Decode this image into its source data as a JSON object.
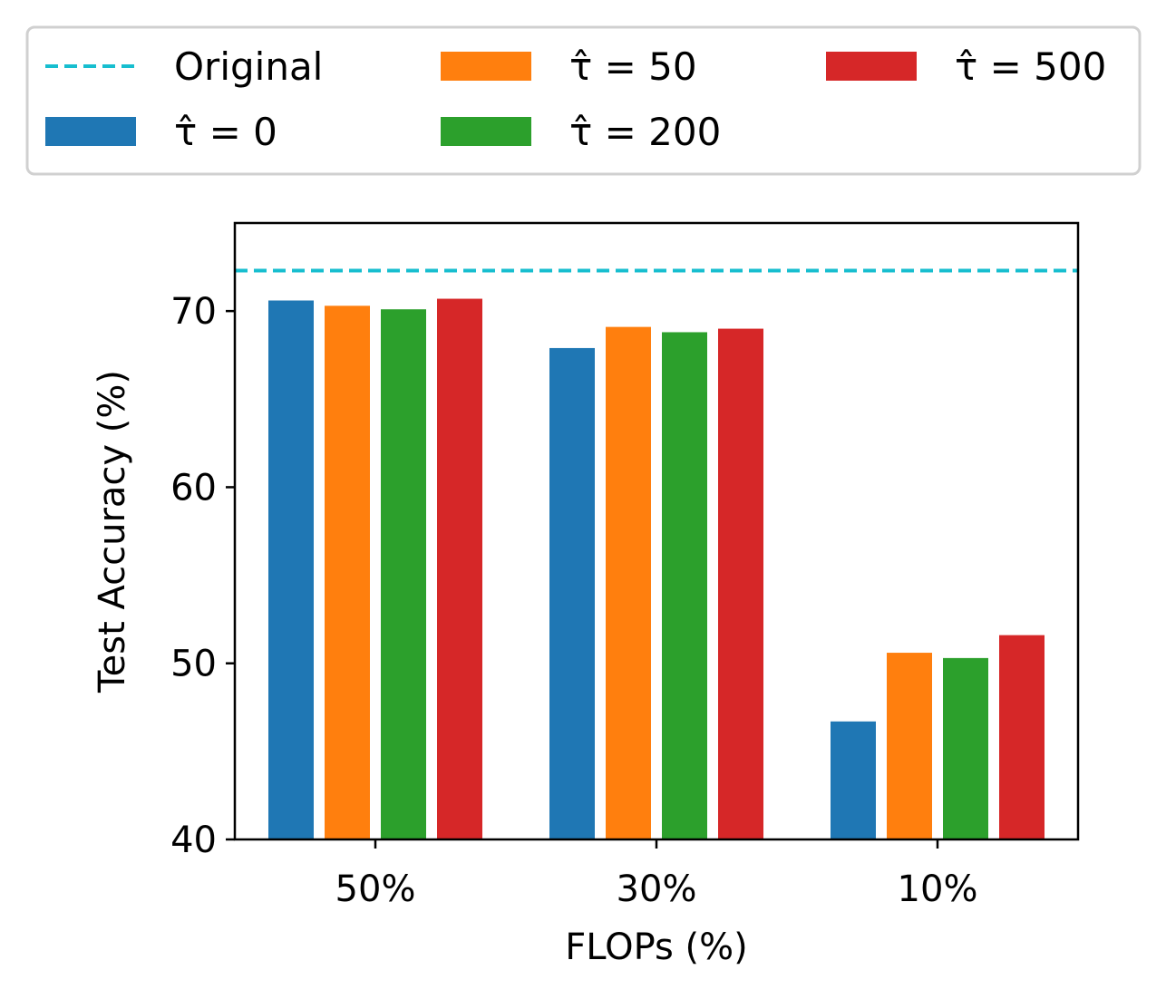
{
  "chart_data": {
    "type": "bar",
    "title": "",
    "xlabel": "FLOPs (%)",
    "ylabel": "Test Accuracy (%)",
    "categories": [
      "50%",
      "30%",
      "10%"
    ],
    "ylim": [
      40,
      75
    ],
    "yticks": [
      40,
      50,
      60,
      70
    ],
    "grid": false,
    "legend_position": "top",
    "legend_columns": 3,
    "reference_line": {
      "name": "Original",
      "value": 72.3,
      "style": "dashed",
      "color": "#17becf"
    },
    "series": [
      {
        "name": "τ̂ = 0",
        "values": [
          70.6,
          67.9,
          46.7
        ],
        "color": "#1f77b4"
      },
      {
        "name": "τ̂ = 50",
        "values": [
          70.3,
          69.1,
          50.6
        ],
        "color": "#ff7f0e"
      },
      {
        "name": "τ̂ = 200",
        "values": [
          70.1,
          68.8,
          50.3
        ],
        "color": "#2ca02c"
      },
      {
        "name": "τ̂ = 500",
        "values": [
          70.7,
          69.0,
          51.6
        ],
        "color": "#d62728"
      }
    ]
  }
}
